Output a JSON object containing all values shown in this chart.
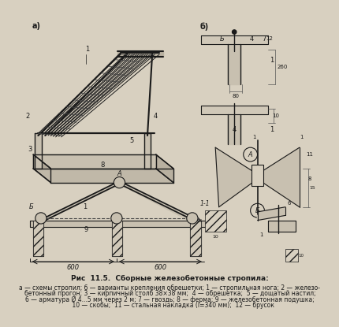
{
  "title_line1": "Рис  11.5.  Сборные железобетонные стропила:",
  "caption_line1": "а — схемы стропил; б — варианты крепления обрешетки; 1 — стропильная нога; 2 — железо-",
  "caption_line2": "бетонный прогон; 3 — кирпичный столб 38×38 мм;  4 — обрешетка;  5 — дощатый настил;",
  "caption_line3": "6 — арматура Ø 4...5 мм через 2 м; 7 — гвоздь; 8 — ферма; 9 — железобетонная подушка;",
  "caption_line4": "    10 — скобы;  11 — стальная накладка (l=340 мм);  12 — брусок",
  "bg_color": "#d8d0c0",
  "fig_width": 4.31,
  "fig_height": 4.15,
  "dpi": 100
}
